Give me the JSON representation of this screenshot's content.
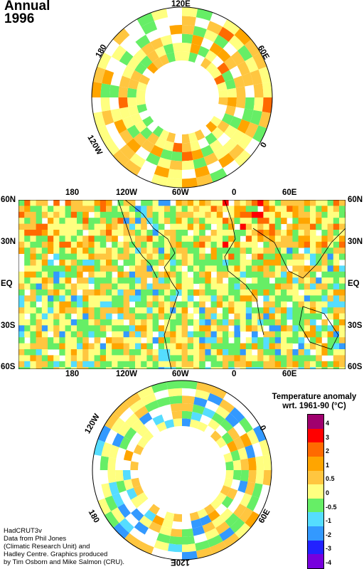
{
  "title": {
    "line1": "Annual",
    "line2": "1996"
  },
  "north_map": {
    "labels": {
      "top": "120E",
      "left": "180",
      "right": "60E",
      "bottom_left": "120W",
      "bottom_right": "0"
    }
  },
  "world_map": {
    "lon_labels": [
      "180",
      "120W",
      "60W",
      "0",
      "60E"
    ],
    "lat_labels": [
      "60N",
      "30N",
      "EQ",
      "30S",
      "60S"
    ]
  },
  "south_map": {
    "labels": {
      "bottom": "120E",
      "left_top": "120W",
      "right_top": "0",
      "left_bottom": "180",
      "right_bottom": "60E"
    }
  },
  "legend": {
    "title_line1": "Temperature anomaly",
    "title_line2": "wrt. 1961-90  (°C)",
    "ticks": [
      "4",
      "3",
      "2",
      "1",
      "0.5",
      "0",
      "-0.5",
      "-1",
      "-2",
      "-3",
      "-4"
    ],
    "colors": {
      "c4": "#a0006e",
      "c3": "#ff0000",
      "c2": "#ff6a00",
      "c1": "#ffa500",
      "c05": "#ffc640",
      "c0": "#ffff80",
      "cm05": "#66ee66",
      "cm1": "#55ddff",
      "cm2": "#3399ff",
      "cm3": "#2222ff",
      "cm4": "#7700dd"
    }
  },
  "credit": {
    "line1": "HadCRUT3v",
    "line2": "Data from Phil Jones",
    "line3": "(Climatic Research Unit) and",
    "line4": "Hadley Centre.  Graphics produced",
    "line5": "by Tim Osborn and Mike Salmon (CRU)."
  }
}
